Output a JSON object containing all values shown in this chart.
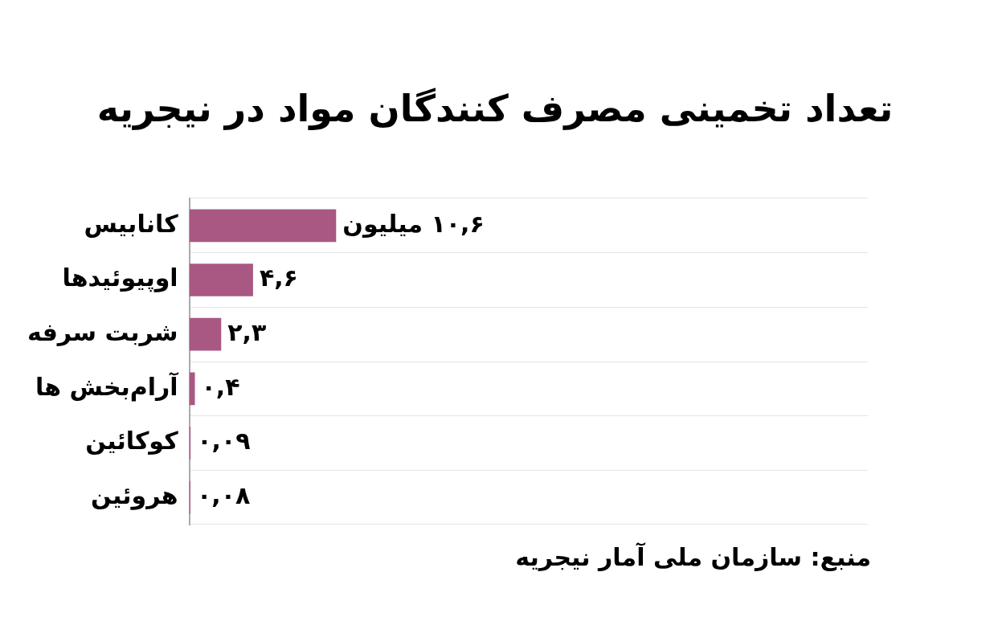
{
  "chart_data": {
    "type": "bar",
    "orientation": "horizontal",
    "title": "تعداد تخمینی مصرف کنندگان مواد در نیجریه",
    "categories": [
      "کانابیس",
      "اوپیوئیدها",
      "شربت سرفه",
      "آرام‌بخش ها",
      "کوکائین",
      "هروئین"
    ],
    "values": [
      10.6,
      4.6,
      2.3,
      0.4,
      0.09,
      0.08
    ],
    "value_labels": [
      "۱۰,۶ میلیون",
      "۴,۶",
      "۲,۳",
      "۰,۴",
      "۰,۰۹",
      "۰,۰۸"
    ],
    "color": "#a85883",
    "xlim": [
      0,
      49
    ],
    "grid": "y",
    "tick_labels": "y",
    "annotations": [
      "منبع: سازمان ملی آمار نیجریه"
    ]
  }
}
